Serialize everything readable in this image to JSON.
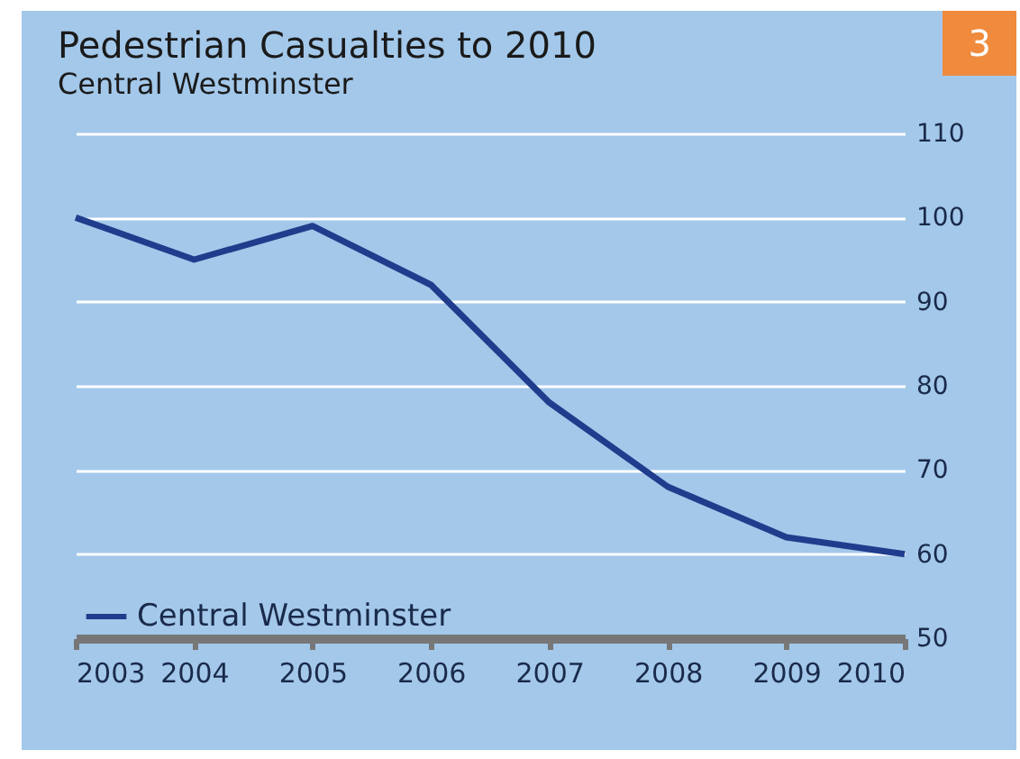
{
  "chart_data": {
    "type": "line",
    "title": "Pedestrian Casualties to 2010",
    "subtitle": "Central Westminster",
    "annotations": [
      "3"
    ],
    "categories": [
      "2003",
      "2004",
      "2005",
      "2006",
      "2007",
      "2008",
      "2009",
      "2010"
    ],
    "series": [
      {
        "name": "Central Westminster",
        "color": "#1f3d8c",
        "values": [
          100,
          95,
          99,
          92,
          78,
          68,
          62,
          60
        ]
      }
    ],
    "ylim": [
      50,
      110
    ],
    "yticks": [
      50,
      60,
      70,
      80,
      90,
      100,
      110
    ],
    "grid": "y",
    "legend": "bottom left",
    "marker": "none",
    "line_style": "solid"
  }
}
